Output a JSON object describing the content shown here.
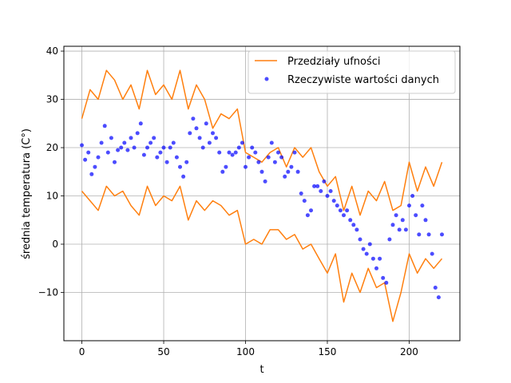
{
  "chart_data": {
    "type": "line",
    "xlabel": "t",
    "ylabel": "średnia temperatura (C°)",
    "xlim": [
      -11,
      231
    ],
    "ylim": [
      -20,
      41
    ],
    "xticks": [
      0,
      50,
      100,
      150,
      200
    ],
    "yticks": [
      -10,
      0,
      10,
      20,
      30,
      40
    ],
    "xtick_labels": [
      "0",
      "50",
      "100",
      "150",
      "200"
    ],
    "ytick_labels": [
      "−10",
      "0",
      "10",
      "20",
      "30",
      "40"
    ],
    "grid": true,
    "legend_position": "top-right",
    "colors": {
      "band": "#ff7f0e",
      "points": "#0000ff"
    },
    "series": [
      {
        "name": "Przedziały ufności",
        "kind": "band",
        "x": [
          0,
          5,
          10,
          15,
          20,
          25,
          30,
          35,
          40,
          45,
          50,
          55,
          60,
          65,
          70,
          75,
          80,
          85,
          90,
          95,
          100,
          105,
          110,
          115,
          120,
          125,
          130,
          135,
          140,
          145,
          150,
          155,
          160,
          165,
          170,
          175,
          180,
          185,
          190,
          195,
          200,
          205,
          210,
          215,
          220
        ],
        "upper": [
          26,
          32,
          30,
          36,
          34,
          30,
          33,
          28,
          36,
          31,
          33,
          30,
          36,
          28,
          33,
          30,
          24,
          27,
          26,
          28,
          19,
          18,
          17,
          19,
          20,
          16,
          20,
          18,
          20,
          15,
          12,
          14,
          7,
          12,
          6,
          11,
          9,
          13,
          7,
          8,
          17,
          11,
          16,
          12,
          17
        ],
        "lower": [
          11,
          9,
          7,
          12,
          10,
          11,
          8,
          6,
          12,
          8,
          10,
          9,
          12,
          5,
          9,
          7,
          9,
          8,
          6,
          7,
          0,
          1,
          0,
          3,
          3,
          1,
          2,
          -1,
          0,
          -3,
          -6,
          -2,
          -12,
          -6,
          -10,
          -5,
          -9,
          -8,
          -16,
          -10,
          -2,
          -6,
          -3,
          -5,
          -3
        ]
      },
      {
        "name": "Rzeczywiste wartości danych",
        "kind": "scatter",
        "x": [
          0,
          2,
          4,
          6,
          8,
          10,
          12,
          14,
          16,
          18,
          20,
          22,
          24,
          26,
          28,
          30,
          32,
          34,
          36,
          38,
          40,
          42,
          44,
          46,
          48,
          50,
          52,
          54,
          56,
          58,
          60,
          62,
          64,
          66,
          68,
          70,
          72,
          74,
          76,
          78,
          80,
          82,
          84,
          86,
          88,
          90,
          92,
          94,
          96,
          98,
          100,
          102,
          104,
          106,
          108,
          110,
          112,
          114,
          116,
          118,
          120,
          122,
          124,
          126,
          128,
          130,
          132,
          134,
          136,
          138,
          140,
          142,
          144,
          146,
          148,
          150,
          152,
          154,
          156,
          158,
          160,
          162,
          164,
          166,
          168,
          170,
          172,
          174,
          176,
          178,
          180,
          182,
          184,
          186,
          188,
          190,
          192,
          194,
          196,
          198,
          200,
          202,
          204,
          206,
          208,
          210,
          212,
          214,
          216,
          218,
          220
        ],
        "y": [
          20.5,
          17.5,
          19,
          14.5,
          16,
          18,
          21,
          24.5,
          19,
          22,
          17,
          19.5,
          20,
          21,
          19.5,
          22,
          20,
          23,
          25,
          18.5,
          20,
          21,
          22,
          18,
          19,
          20,
          17,
          20,
          21,
          18,
          16,
          14,
          17,
          23,
          26,
          24,
          22,
          20,
          25,
          21,
          23,
          22,
          19,
          15,
          16,
          19,
          18.5,
          19,
          20,
          21,
          16,
          18,
          20,
          19,
          17,
          15,
          13,
          18,
          21,
          17,
          19,
          18,
          14,
          15,
          16,
          19,
          15,
          10.5,
          9,
          6,
          7,
          12,
          12,
          11,
          13,
          10,
          11,
          9,
          8,
          7,
          6,
          7,
          5,
          4,
          3,
          1,
          -1,
          -2,
          0,
          -3,
          -5,
          -3,
          -7,
          -8,
          1,
          4,
          6,
          3,
          5,
          3,
          8,
          10,
          6,
          2,
          8,
          5,
          2,
          -2,
          -9,
          -11,
          2
        ]
      }
    ]
  }
}
